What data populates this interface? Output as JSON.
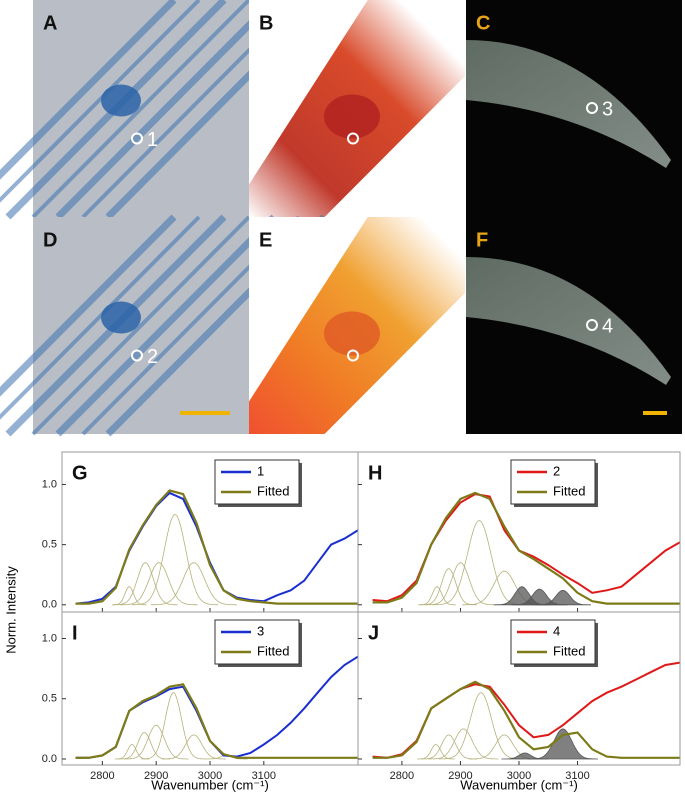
{
  "figure": {
    "ylabel": "Norm. Intensity",
    "xlabel": "Wavenumber (cm⁻¹)"
  },
  "images": [
    {
      "letter": "A",
      "letter_color": "#111111",
      "marker": "1",
      "style": "blue"
    },
    {
      "letter": "B",
      "letter_color": "#111111",
      "marker": null,
      "style": "red"
    },
    {
      "letter": "C",
      "letter_color": "#e8a317",
      "marker": "3",
      "style": "dark"
    },
    {
      "letter": "D",
      "letter_color": "#111111",
      "marker": "2",
      "style": "blue"
    },
    {
      "letter": "E",
      "letter_color": "#111111",
      "marker": null,
      "style": "orange"
    },
    {
      "letter": "F",
      "letter_color": "#e8a317",
      "marker": "4",
      "style": "dark"
    }
  ],
  "chart_data": [
    {
      "type": "line",
      "label": "G",
      "x": [
        2750,
        2775,
        2800,
        2825,
        2850,
        2875,
        2900,
        2925,
        2950,
        2975,
        3000,
        3025,
        3050,
        3075,
        3100,
        3125,
        3150,
        3175,
        3200,
        3225,
        3250,
        3275
      ],
      "series": [
        {
          "name": "1",
          "color": "#1a2fd0",
          "values": [
            0.01,
            0.02,
            0.05,
            0.15,
            0.45,
            0.65,
            0.82,
            0.93,
            0.88,
            0.65,
            0.35,
            0.12,
            0.06,
            0.04,
            0.03,
            0.08,
            0.12,
            0.2,
            0.35,
            0.5,
            0.55,
            0.62
          ]
        },
        {
          "name": "Fitted",
          "color": "#7d7a18",
          "values": [
            0.01,
            0.01,
            0.03,
            0.14,
            0.46,
            0.66,
            0.83,
            0.95,
            0.92,
            0.68,
            0.33,
            0.12,
            0.05,
            0.03,
            0.02,
            0.01,
            0.01,
            0.01,
            0.01,
            0.01,
            0.01,
            0.01
          ]
        }
      ],
      "peaks": [
        {
          "center": 2850,
          "height": 0.15,
          "width": 8
        },
        {
          "center": 2880,
          "height": 0.35,
          "width": 15
        },
        {
          "center": 2905,
          "height": 0.35,
          "width": 18
        },
        {
          "center": 2935,
          "height": 0.75,
          "width": 20
        },
        {
          "center": 2970,
          "height": 0.35,
          "width": 20
        }
      ],
      "peak_color": "#b5b27a",
      "xlim": [
        2725,
        3275
      ],
      "ylim": [
        -0.06,
        1.27
      ],
      "xticks": [
        2800,
        2900,
        3000,
        3100
      ],
      "show_xtick_labels": false,
      "yticks": [
        {
          "value": 0,
          "label": "0.0"
        },
        {
          "value": 0.5,
          "label": "0.5"
        },
        {
          "value": 1,
          "label": "1.0"
        }
      ],
      "show_ytick_labels": true
    },
    {
      "type": "line",
      "label": "H",
      "x": [
        2750,
        2775,
        2800,
        2825,
        2850,
        2875,
        2900,
        2925,
        2950,
        2975,
        3000,
        3025,
        3050,
        3075,
        3100,
        3125,
        3150,
        3175,
        3200,
        3225,
        3250,
        3275
      ],
      "series": [
        {
          "name": "2",
          "color": "#e01818",
          "values": [
            0.04,
            0.03,
            0.08,
            0.2,
            0.5,
            0.7,
            0.85,
            0.92,
            0.9,
            0.62,
            0.45,
            0.4,
            0.33,
            0.25,
            0.18,
            0.1,
            0.12,
            0.15,
            0.25,
            0.35,
            0.45,
            0.52
          ]
        },
        {
          "name": "Fitted",
          "color": "#7d7a18",
          "values": [
            0.02,
            0.02,
            0.06,
            0.18,
            0.5,
            0.72,
            0.88,
            0.93,
            0.88,
            0.65,
            0.45,
            0.38,
            0.3,
            0.22,
            0.1,
            0.03,
            0.01,
            0.01,
            0.01,
            0.01,
            0.01,
            0.01
          ]
        }
      ],
      "peaks": [
        {
          "center": 2860,
          "height": 0.15,
          "width": 8
        },
        {
          "center": 2880,
          "height": 0.3,
          "width": 12
        },
        {
          "center": 2900,
          "height": 0.35,
          "width": 15
        },
        {
          "center": 2932,
          "height": 0.7,
          "width": 20
        },
        {
          "center": 2975,
          "height": 0.28,
          "width": 18
        },
        {
          "center": 3005,
          "height": 0.15,
          "width": 12,
          "shaded": true
        },
        {
          "center": 3035,
          "height": 0.13,
          "width": 12,
          "shaded": true
        },
        {
          "center": 3075,
          "height": 0.12,
          "width": 12,
          "shaded": true
        }
      ],
      "peak_color": "#b5b27a",
      "shade_color": "#555555",
      "xlim": [
        2725,
        3275
      ],
      "ylim": [
        -0.06,
        1.27
      ],
      "xticks": [
        2800,
        2900,
        3000,
        3100
      ],
      "show_xtick_labels": false,
      "yticks": [
        {
          "value": 0,
          "label": "0.0"
        },
        {
          "value": 0.5,
          "label": "0.5"
        },
        {
          "value": 1,
          "label": "1.0"
        }
      ],
      "show_ytick_labels": false
    },
    {
      "type": "line",
      "label": "I",
      "x": [
        2750,
        2775,
        2800,
        2825,
        2850,
        2875,
        2900,
        2925,
        2950,
        2975,
        3000,
        3025,
        3050,
        3075,
        3100,
        3125,
        3150,
        3175,
        3200,
        3225,
        3250,
        3275
      ],
      "series": [
        {
          "name": "3",
          "color": "#1a2fd0",
          "values": [
            0.01,
            0.01,
            0.03,
            0.1,
            0.4,
            0.47,
            0.52,
            0.58,
            0.6,
            0.4,
            0.15,
            0.03,
            0.02,
            0.05,
            0.12,
            0.2,
            0.3,
            0.42,
            0.55,
            0.68,
            0.78,
            0.85
          ]
        },
        {
          "name": "Fitted",
          "color": "#7d7a18",
          "values": [
            0.01,
            0.01,
            0.03,
            0.1,
            0.4,
            0.48,
            0.53,
            0.6,
            0.62,
            0.42,
            0.15,
            0.04,
            0.01,
            0.01,
            0.01,
            0.01,
            0.01,
            0.01,
            0.01,
            0.01,
            0.01,
            0.01
          ]
        }
      ],
      "peaks": [
        {
          "center": 2855,
          "height": 0.12,
          "width": 8
        },
        {
          "center": 2878,
          "height": 0.22,
          "width": 12
        },
        {
          "center": 2900,
          "height": 0.28,
          "width": 15
        },
        {
          "center": 2932,
          "height": 0.55,
          "width": 15
        },
        {
          "center": 2970,
          "height": 0.2,
          "width": 15
        },
        {
          "center": 3030,
          "height": 0.03,
          "width": 10
        }
      ],
      "peak_color": "#b5b27a",
      "xlim": [
        2725,
        3275
      ],
      "ylim": [
        -0.05,
        1.22
      ],
      "xticks": [
        2800,
        2900,
        3000,
        3100
      ],
      "show_xtick_labels": true,
      "yticks": [
        {
          "value": 0,
          "label": "0.0"
        },
        {
          "value": 0.5,
          "label": "0.5"
        },
        {
          "value": 1,
          "label": "1.0"
        }
      ],
      "show_ytick_labels": true
    },
    {
      "type": "line",
      "label": "J",
      "x": [
        2750,
        2775,
        2800,
        2825,
        2850,
        2875,
        2900,
        2925,
        2950,
        2975,
        3000,
        3025,
        3050,
        3075,
        3100,
        3125,
        3150,
        3175,
        3200,
        3225,
        3250,
        3275
      ],
      "series": [
        {
          "name": "4",
          "color": "#e01818",
          "values": [
            0.02,
            0.01,
            0.04,
            0.15,
            0.42,
            0.5,
            0.58,
            0.62,
            0.6,
            0.45,
            0.28,
            0.18,
            0.2,
            0.28,
            0.38,
            0.48,
            0.55,
            0.6,
            0.66,
            0.72,
            0.78,
            0.8
          ]
        },
        {
          "name": "Fitted",
          "color": "#7d7a18",
          "values": [
            0.01,
            0.01,
            0.03,
            0.14,
            0.42,
            0.5,
            0.58,
            0.64,
            0.58,
            0.4,
            0.18,
            0.08,
            0.1,
            0.2,
            0.22,
            0.08,
            0.02,
            0.01,
            0.01,
            0.01,
            0.01,
            0.01
          ]
        }
      ],
      "peaks": [
        {
          "center": 2858,
          "height": 0.12,
          "width": 8
        },
        {
          "center": 2880,
          "height": 0.2,
          "width": 12
        },
        {
          "center": 2905,
          "height": 0.25,
          "width": 15
        },
        {
          "center": 2935,
          "height": 0.55,
          "width": 18
        },
        {
          "center": 2975,
          "height": 0.2,
          "width": 15
        },
        {
          "center": 3010,
          "height": 0.05,
          "width": 10,
          "shaded": true
        },
        {
          "center": 3075,
          "height": 0.25,
          "width": 15,
          "shaded": true
        }
      ],
      "peak_color": "#b5b27a",
      "shade_color": "#555555",
      "xlim": [
        2725,
        3275
      ],
      "ylim": [
        -0.05,
        1.22
      ],
      "xticks": [
        2800,
        2900,
        3000,
        3100
      ],
      "show_xtick_labels": true,
      "yticks": [
        {
          "value": 0,
          "label": "0.0"
        },
        {
          "value": 0.5,
          "label": "0.5"
        },
        {
          "value": 1,
          "label": "1.0"
        }
      ],
      "show_ytick_labels": false
    }
  ]
}
